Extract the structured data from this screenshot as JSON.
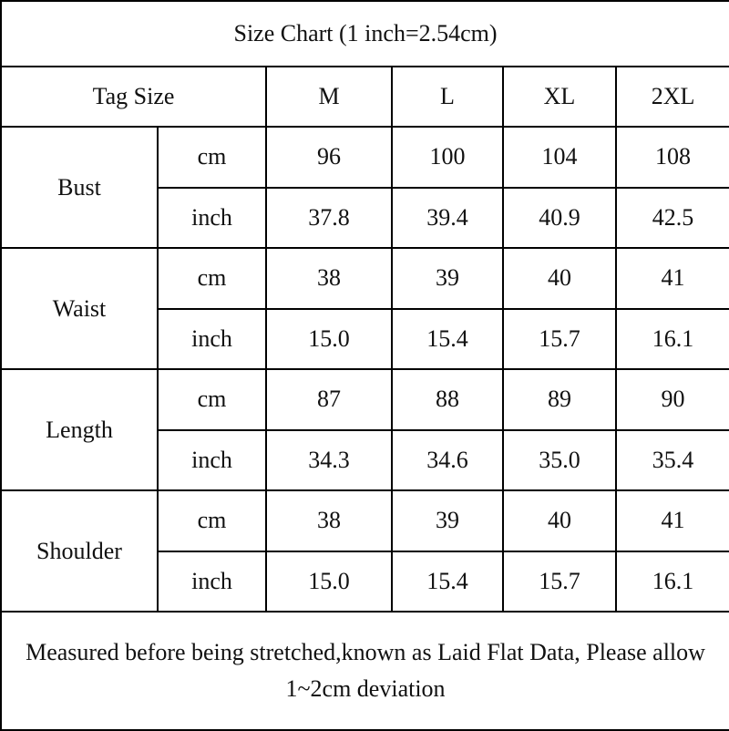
{
  "title": "Size Chart (1 inch=2.54cm)",
  "header": [
    "Tag Size",
    "M",
    "L",
    "XL",
    "2XL"
  ],
  "groups": [
    {
      "label": "Bust",
      "rows": [
        {
          "unit": "cm",
          "values": [
            "96",
            "100",
            "104",
            "108"
          ]
        },
        {
          "unit": "inch",
          "values": [
            "37.8",
            "39.4",
            "40.9",
            "42.5"
          ]
        }
      ]
    },
    {
      "label": "Waist",
      "rows": [
        {
          "unit": "cm",
          "values": [
            "38",
            "39",
            "40",
            "41"
          ]
        },
        {
          "unit": "inch",
          "values": [
            "15.0",
            "15.4",
            "15.7",
            "16.1"
          ]
        }
      ]
    },
    {
      "label": "Length",
      "rows": [
        {
          "unit": "cm",
          "values": [
            "87",
            "88",
            "89",
            "90"
          ]
        },
        {
          "unit": "inch",
          "values": [
            "34.3",
            "34.6",
            "35.0",
            "35.4"
          ]
        }
      ]
    },
    {
      "label": "Shoulder",
      "rows": [
        {
          "unit": "cm",
          "values": [
            "38",
            "39",
            "40",
            "41"
          ]
        },
        {
          "unit": "inch",
          "values": [
            "15.0",
            "15.4",
            "15.7",
            "16.1"
          ]
        }
      ]
    }
  ],
  "note": "Measured before being stretched,known as Laid Flat Data, Please allow 1~2cm deviation"
}
